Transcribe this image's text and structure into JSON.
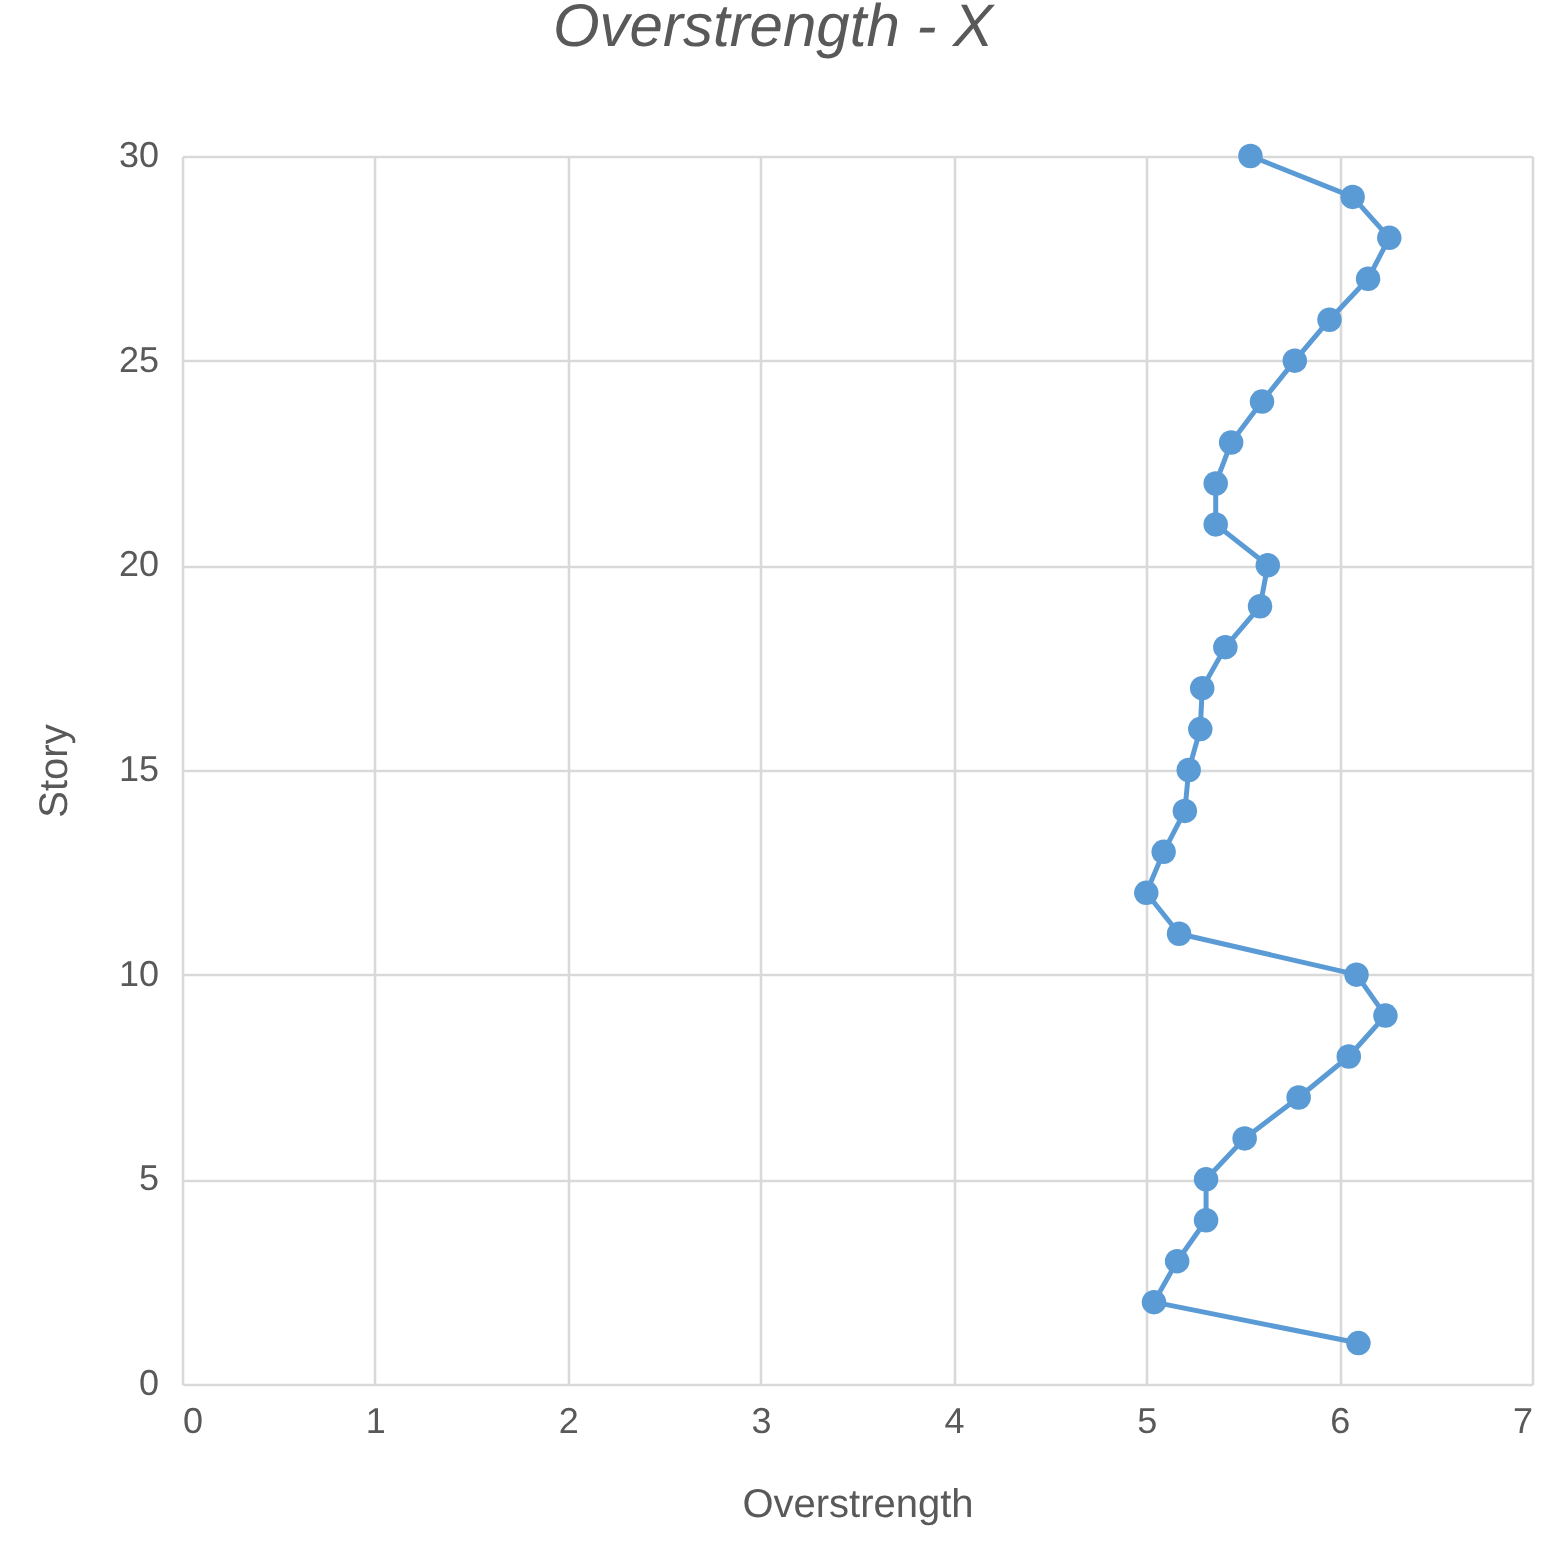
{
  "chart_data": {
    "type": "line",
    "title": "Overstrength - X",
    "xlabel": "Overstrength",
    "ylabel": "Story",
    "x": [
      6.1,
      5.04,
      5.16,
      5.31,
      5.31,
      5.51,
      5.79,
      6.05,
      6.24,
      6.09,
      5.17,
      5.0,
      5.09,
      5.2,
      5.22,
      5.28,
      5.29,
      5.41,
      5.59,
      5.63,
      5.36,
      5.36,
      5.44,
      5.6,
      5.77,
      5.95,
      6.15,
      6.26,
      6.07,
      5.54
    ],
    "values": [
      1,
      2,
      3,
      4,
      5,
      6,
      7,
      8,
      9,
      10,
      11,
      12,
      13,
      14,
      15,
      16,
      17,
      18,
      19,
      20,
      21,
      22,
      23,
      24,
      25,
      26,
      27,
      28,
      29,
      30
    ],
    "color": "#5b9bd5",
    "xlim": [
      0,
      7
    ],
    "ylim": [
      0,
      30
    ],
    "xticks": [
      0,
      1,
      2,
      3,
      4,
      5,
      6,
      7
    ],
    "yticks": [
      0,
      5,
      10,
      15,
      20,
      25,
      30
    ],
    "grid": true,
    "marker": "circle",
    "line_style": "solid"
  }
}
